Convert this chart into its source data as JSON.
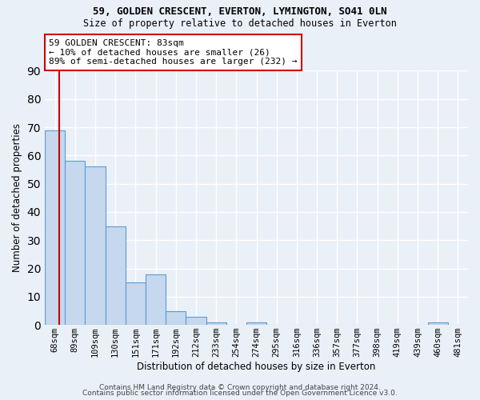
{
  "title1": "59, GOLDEN CRESCENT, EVERTON, LYMINGTON, SO41 0LN",
  "title2": "Size of property relative to detached houses in Everton",
  "xlabel": "Distribution of detached houses by size in Everton",
  "ylabel": "Number of detached properties",
  "bar_labels": [
    "68sqm",
    "89sqm",
    "109sqm",
    "130sqm",
    "151sqm",
    "171sqm",
    "192sqm",
    "212sqm",
    "233sqm",
    "254sqm",
    "274sqm",
    "295sqm",
    "316sqm",
    "336sqm",
    "357sqm",
    "377sqm",
    "398sqm",
    "419sqm",
    "439sqm",
    "460sqm",
    "481sqm"
  ],
  "bar_values": [
    69,
    58,
    56,
    35,
    15,
    18,
    5,
    3,
    1,
    0,
    1,
    0,
    0,
    0,
    0,
    0,
    0,
    0,
    0,
    1,
    0
  ],
  "bar_color": "#c5d8ed",
  "bar_edge_color": "#5b9bd5",
  "bg_color": "#eaf0f8",
  "grid_color": "#ffffff",
  "annotation_text": "59 GOLDEN CRESCENT: 83sqm\n← 10% of detached houses are smaller (26)\n89% of semi-detached houses are larger (232) →",
  "annotation_box_color": "#ffffff",
  "annotation_box_edge": "#cc0000",
  "footer1": "Contains HM Land Registry data © Crown copyright and database right 2024.",
  "footer2": "Contains public sector information licensed under the Open Government Licence v3.0.",
  "ylim": [
    0,
    90
  ],
  "yticks": [
    0,
    10,
    20,
    30,
    40,
    50,
    60,
    70,
    80,
    90
  ]
}
